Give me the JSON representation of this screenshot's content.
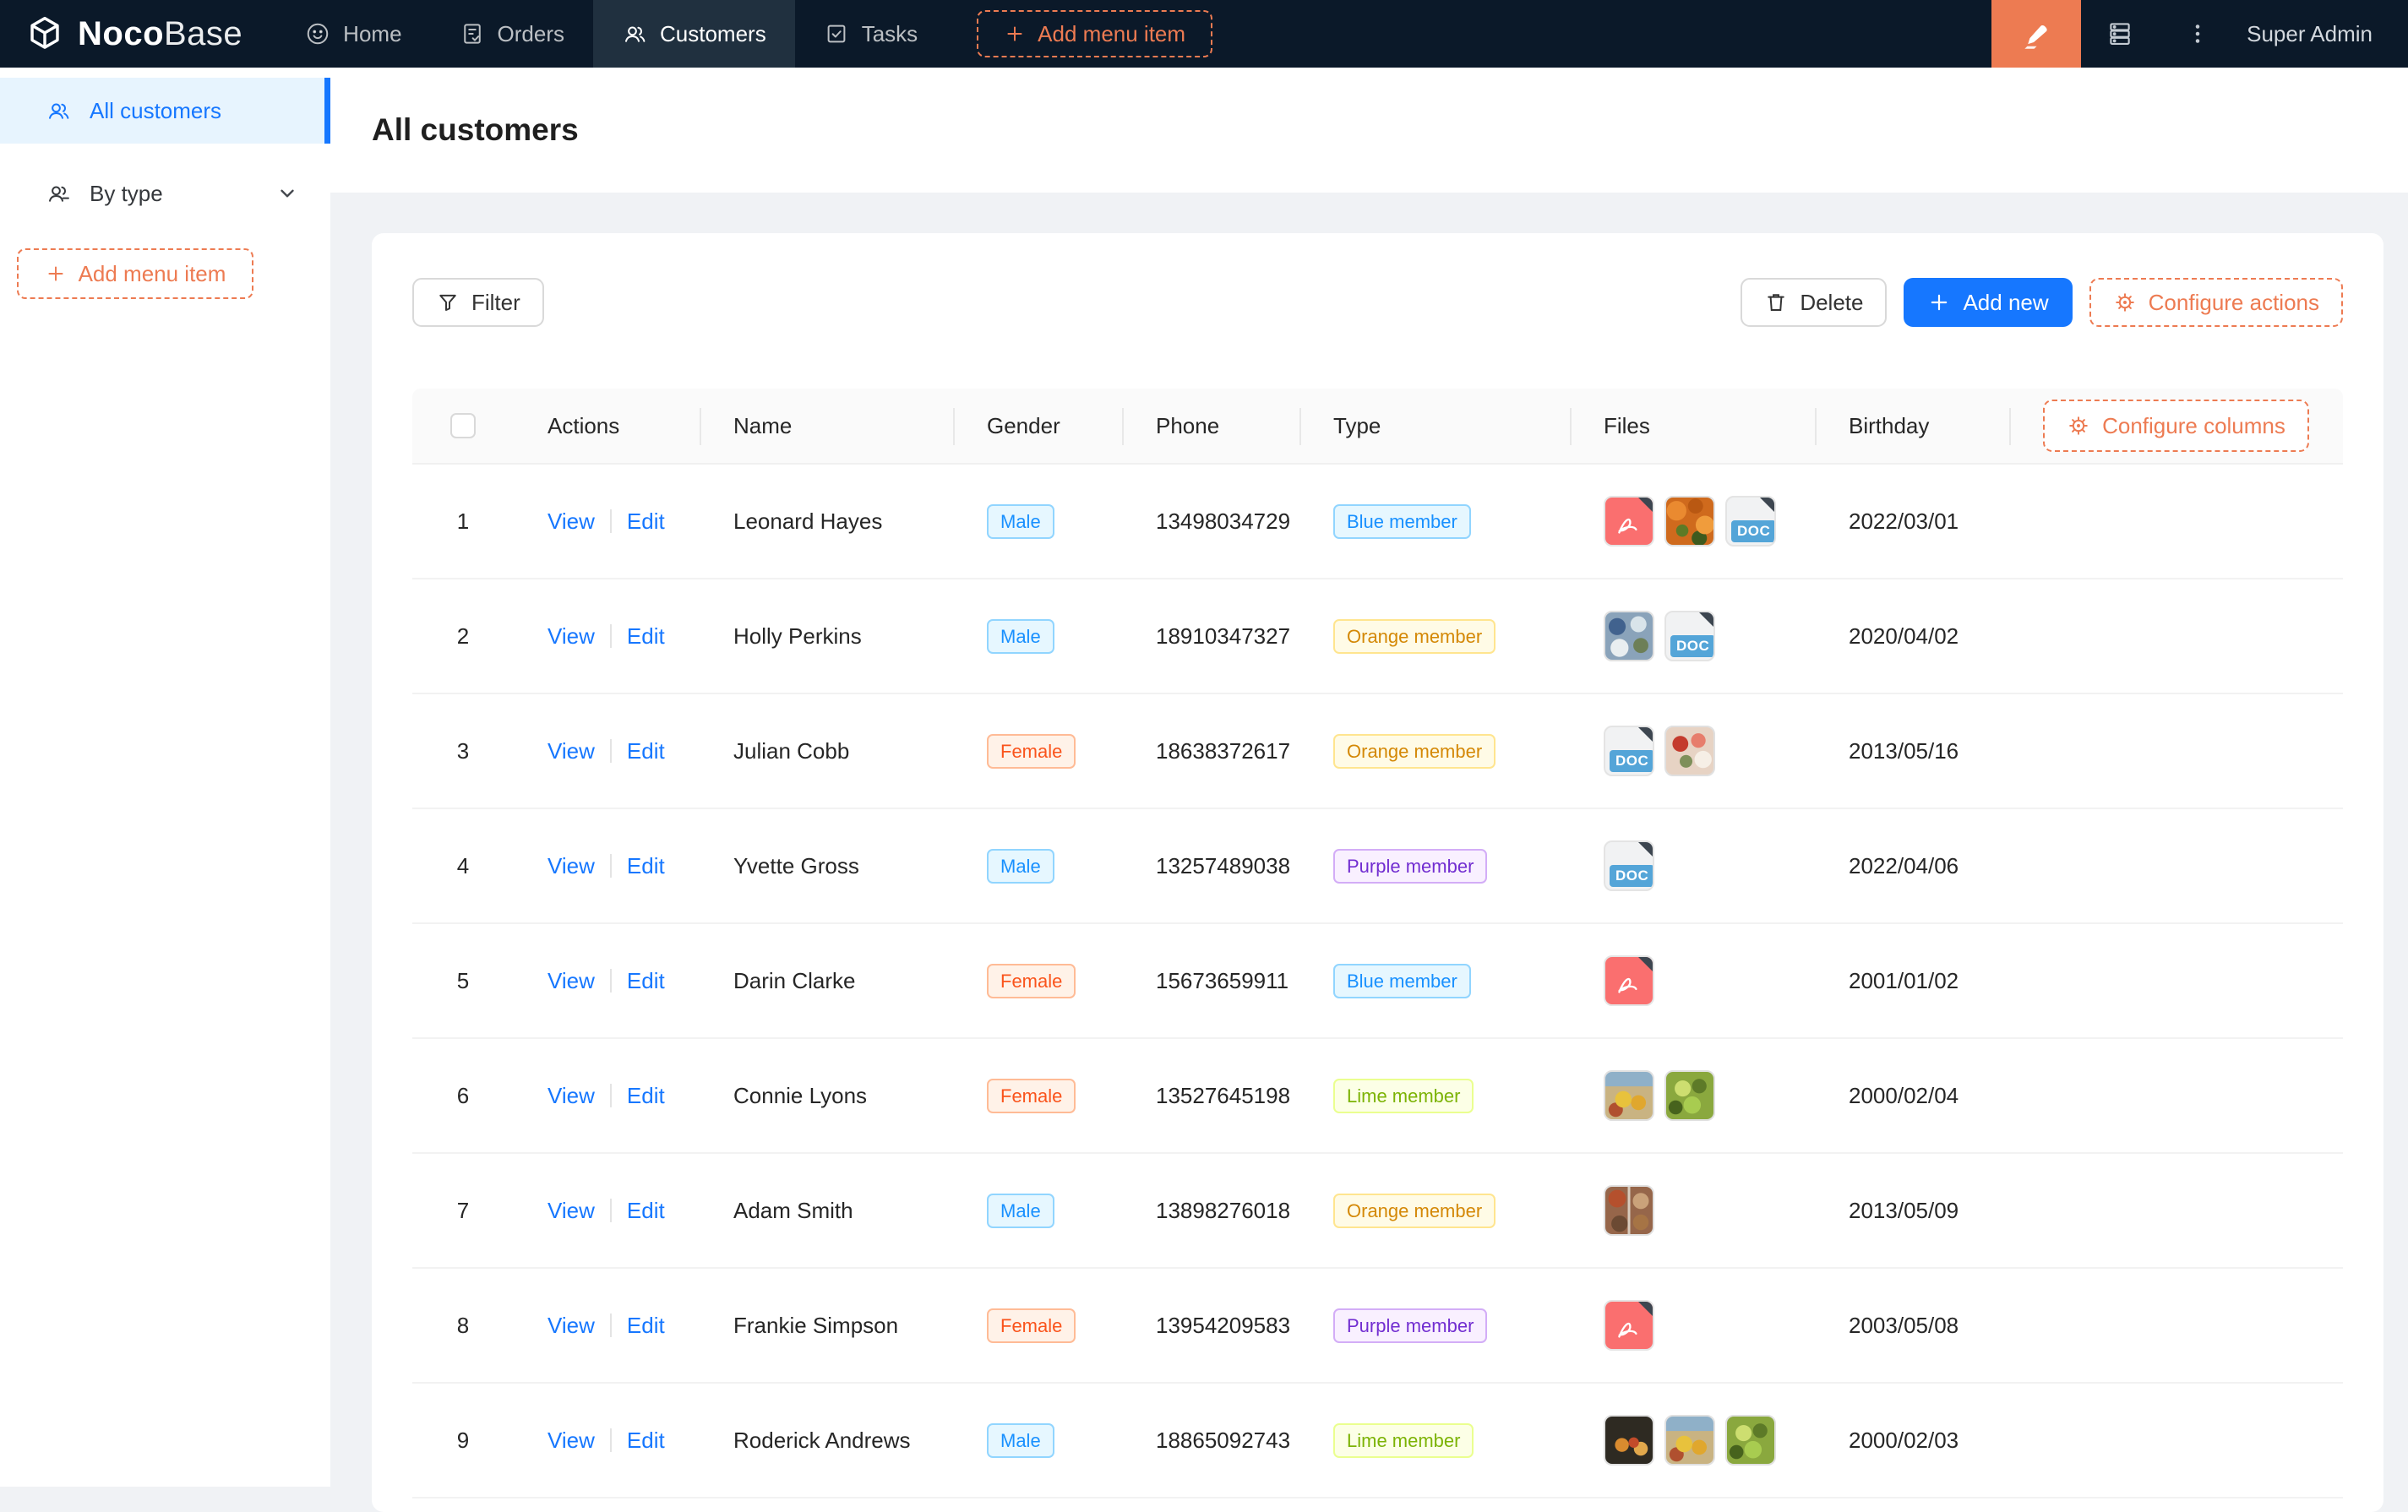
{
  "nav": {
    "logo": {
      "brand_bold": "Noco",
      "brand_light": "Base"
    },
    "items": [
      {
        "label": "Home",
        "icon": "smile-icon",
        "active": false
      },
      {
        "label": "Orders",
        "icon": "file-check-icon",
        "active": false
      },
      {
        "label": "Customers",
        "icon": "team-icon",
        "active": true
      },
      {
        "label": "Tasks",
        "icon": "check-square-icon",
        "active": false
      }
    ],
    "add_menu_item_label": "Add menu item",
    "user": "Super Admin"
  },
  "sidebar": {
    "items": [
      {
        "label": "All customers",
        "icon": "team-icon",
        "active": true
      },
      {
        "label": "By type",
        "icon": "team-icon",
        "active": false
      }
    ],
    "add_menu_item_label": "Add menu item"
  },
  "page": {
    "title": "All customers"
  },
  "toolbar": {
    "filter": "Filter",
    "delete": "Delete",
    "add_new": "Add new",
    "configure_actions": "Configure actions"
  },
  "table": {
    "columns": [
      "Actions",
      "Name",
      "Gender",
      "Phone",
      "Type",
      "Files",
      "Birthday"
    ],
    "configure_columns": "Configure columns",
    "action_labels": {
      "view": "View",
      "edit": "Edit"
    },
    "file_badge_doc": "DOC",
    "tag_colors": {
      "blue": {
        "bg": "#e6f7ff",
        "border": "#91d5ff",
        "text": "#1890ff"
      },
      "volcano": {
        "bg": "#fff2e8",
        "border": "#ffbb96",
        "text": "#fa541c"
      },
      "gold": {
        "bg": "#fffbe6",
        "border": "#ffe58f",
        "text": "#d48806"
      },
      "purple": {
        "bg": "#f9f0ff",
        "border": "#d3adf7",
        "text": "#722ed1"
      },
      "lime": {
        "bg": "#fcffe6",
        "border": "#eaff8f",
        "text": "#7cb305"
      }
    },
    "rows": [
      {
        "index": 1,
        "name": "Leonard Hayes",
        "gender": "Male",
        "gender_color": "blue",
        "phone": "13498034729",
        "type": "Blue member",
        "type_color": "blue",
        "files": [
          "pdf",
          "img-carrots",
          "doc"
        ],
        "birthday": "2022/03/01"
      },
      {
        "index": 2,
        "name": "Holly Perkins",
        "gender": "Male",
        "gender_color": "blue",
        "phone": "18910347327",
        "type": "Orange member",
        "type_color": "gold",
        "files": [
          "img-blue",
          "doc"
        ],
        "birthday": "2020/04/02"
      },
      {
        "index": 3,
        "name": "Julian Cobb",
        "gender": "Female",
        "gender_color": "volcano",
        "phone": "18638372617",
        "type": "Orange member",
        "type_color": "gold",
        "files": [
          "doc",
          "img-plate"
        ],
        "birthday": "2013/05/16"
      },
      {
        "index": 4,
        "name": "Yvette Gross",
        "gender": "Male",
        "gender_color": "blue",
        "phone": "13257489038",
        "type": "Purple member",
        "type_color": "purple",
        "files": [
          "doc"
        ],
        "birthday": "2022/04/06"
      },
      {
        "index": 5,
        "name": "Darin Clarke",
        "gender": "Female",
        "gender_color": "volcano",
        "phone": "15673659911",
        "type": "Blue member",
        "type_color": "blue",
        "files": [
          "pdf"
        ],
        "birthday": "2001/01/02"
      },
      {
        "index": 6,
        "name": "Connie Lyons",
        "gender": "Female",
        "gender_color": "volcano",
        "phone": "13527645198",
        "type": "Lime member",
        "type_color": "lime",
        "files": [
          "img-fruit",
          "img-grapes"
        ],
        "birthday": "2000/02/04"
      },
      {
        "index": 7,
        "name": "Adam Smith",
        "gender": "Male",
        "gender_color": "blue",
        "phone": "13898276018",
        "type": "Orange member",
        "type_color": "gold",
        "files": [
          "img-collage"
        ],
        "birthday": "2013/05/09"
      },
      {
        "index": 8,
        "name": "Frankie Simpson",
        "gender": "Female",
        "gender_color": "volcano",
        "phone": "13954209583",
        "type": "Purple member",
        "type_color": "purple",
        "files": [
          "pdf"
        ],
        "birthday": "2003/05/08"
      },
      {
        "index": 9,
        "name": "Roderick Andrews",
        "gender": "Male",
        "gender_color": "blue",
        "phone": "18865092743",
        "type": "Lime member",
        "type_color": "lime",
        "files": [
          "img-dark-fruit",
          "img-fruit",
          "img-grapes"
        ],
        "birthday": "2000/02/03"
      }
    ]
  },
  "colors": {
    "accent_orange": "#ed7b52",
    "link_blue": "#1677ff",
    "nav_bg": "#0b1929",
    "nav_active_bg": "#20303f",
    "sidebar_active_bg": "#e7f4fe"
  }
}
